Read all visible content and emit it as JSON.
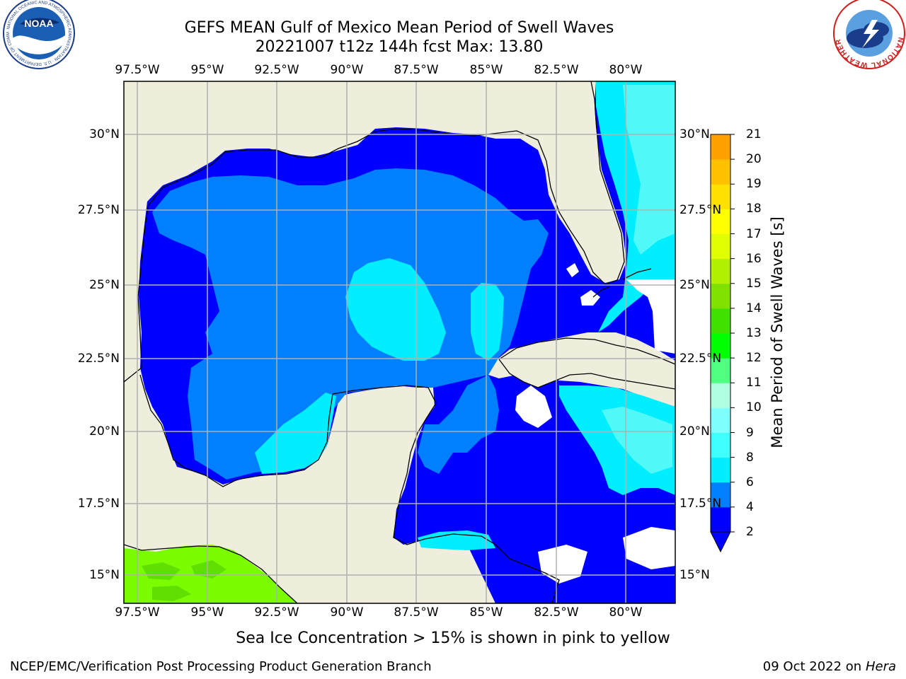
{
  "header": {
    "title_line1": "GEFS MEAN Gulf of Mexico Mean Period of Swell Waves",
    "title_line2": "20221007 t12z 144h fcst   Max: 13.80"
  },
  "logos": {
    "left": "NOAA",
    "left_ring": "NATIONAL OCEANIC AND ATMOSPHERIC ADMINISTRATION · U.S. DEPARTMENT OF COMMERCE",
    "right_ring": "NATIONAL WEATHER SERVICE"
  },
  "map": {
    "x_ticks": [
      "97.5°W",
      "95°W",
      "92.5°W",
      "90°W",
      "87.5°W",
      "85°W",
      "82.5°W",
      "80°W"
    ],
    "y_ticks": [
      "30°N",
      "27.5°N",
      "25°N",
      "22.5°N",
      "20°N",
      "17.5°N",
      "15°N"
    ],
    "colors": {
      "land": "#efeedd",
      "band_2_4": "#0000ff",
      "band_4_6": "#007fff",
      "band_6_8": "#00eeff",
      "band_8_9": "#50f8f8",
      "band_10_12": "#7cfc00",
      "grid": "#b0b0b0"
    }
  },
  "colorbar": {
    "label": "Mean Period of Swell Waves [s]",
    "ticks": [
      "21",
      "20",
      "19",
      "18",
      "17",
      "16",
      "15",
      "14",
      "13",
      "12",
      "11",
      "10",
      "9",
      "8",
      "6",
      "4",
      "2"
    ],
    "colors": [
      "#0000ff",
      "#007fff",
      "#00eeff",
      "#40ffff",
      "#80ffff",
      "#b0ffe0",
      "#50ff80",
      "#00ff00",
      "#40e000",
      "#80e000",
      "#b0f000",
      "#e0ff00",
      "#ffff00",
      "#ffe000",
      "#ffc000",
      "#ffa000",
      "#ff8000",
      "#ff6000",
      "#ff4000",
      "#ff2000",
      "#ff0000"
    ]
  },
  "footer": {
    "note": "Sea Ice Concentration > 15% is shown in pink to yellow",
    "left": "NCEP/EMC/Verification Post Processing Product Generation Branch",
    "date": "09 Oct 2022 on",
    "host": "Hera"
  }
}
